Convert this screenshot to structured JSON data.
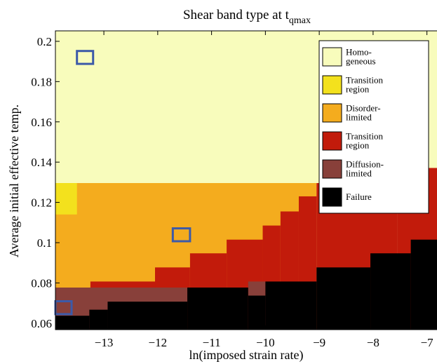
{
  "chart_data": {
    "type": "heatmap",
    "title": "Shear band type at t",
    "title_subscript": "qmax",
    "xlabel": "ln(imposed strain rate)",
    "ylabel": "Average initial effective temp.",
    "xlim": [
      -13.9,
      -6.8
    ],
    "ylim": [
      0.0568,
      0.2052
    ],
    "xticks": [
      -13,
      -12,
      -11,
      -10,
      -9,
      -8,
      -7
    ],
    "xtick_labels": [
      "−13",
      "−12",
      "−11",
      "−10",
      "−9",
      "−8",
      "−7"
    ],
    "yticks": [
      0.06,
      0.08,
      0.1,
      0.12,
      0.14,
      0.16,
      0.18,
      0.2
    ],
    "ytick_labels": [
      "0.06",
      "0.08",
      "0.1",
      "0.12",
      "0.14",
      "0.16",
      "0.18",
      "0.2"
    ],
    "legend_position": "top-right",
    "categories": [
      {
        "key": "homogeneous",
        "label": [
          "Homo-",
          "geneous"
        ],
        "color": "#f8fcbc"
      },
      {
        "key": "transition1",
        "label": [
          "Transition",
          "region"
        ],
        "color": "#f3e11d"
      },
      {
        "key": "disorder",
        "label": [
          "Disorder-",
          "limited"
        ],
        "color": "#f4ac1e"
      },
      {
        "key": "transition2",
        "label": [
          "Transition",
          "region"
        ],
        "color": "#c21b0b"
      },
      {
        "key": "diffusion",
        "label": [
          "Diffusion-",
          "limited"
        ],
        "color": "#88403a"
      },
      {
        "key": "failure",
        "label": [
          "Failure"
        ],
        "color": "#000000"
      }
    ],
    "regions": [
      {
        "category": "homogeneous",
        "x0": -13.9,
        "x1": -6.8,
        "y0": 0.0568,
        "y1": 0.2052
      },
      {
        "category": "disorder",
        "x0": -13.9,
        "x1": -9.05,
        "y0": 0.0568,
        "y1": 0.1296
      },
      {
        "category": "transition1",
        "x0": -13.9,
        "x1": -13.5,
        "y0": 0.114,
        "y1": 0.1296
      },
      {
        "category": "transition2",
        "x0": -9.05,
        "x1": -7.55,
        "y0": 0.0568,
        "y1": 0.1296
      },
      {
        "category": "transition2",
        "x0": -7.55,
        "x1": -6.8,
        "y0": 0.0568,
        "y1": 0.1371
      },
      {
        "category": "transition2",
        "x0": -9.38,
        "x1": -9.05,
        "y0": 0.0568,
        "y1": 0.123
      },
      {
        "category": "transition2",
        "x0": -9.72,
        "x1": -9.38,
        "y0": 0.0568,
        "y1": 0.1155
      },
      {
        "category": "transition2",
        "x0": -10.05,
        "x1": -9.72,
        "y0": 0.0568,
        "y1": 0.1085
      },
      {
        "category": "transition2",
        "x0": -10.72,
        "x1": -10.05,
        "y0": 0.0568,
        "y1": 0.1015
      },
      {
        "category": "transition2",
        "x0": -11.4,
        "x1": -10.72,
        "y0": 0.0568,
        "y1": 0.0947
      },
      {
        "category": "transition2",
        "x0": -12.05,
        "x1": -11.4,
        "y0": 0.0568,
        "y1": 0.0877
      },
      {
        "category": "transition2",
        "x0": -13.25,
        "x1": -12.05,
        "y0": 0.0568,
        "y1": 0.0807
      },
      {
        "category": "transition2",
        "x0": -13.9,
        "x1": -13.25,
        "y0": 0.0568,
        "y1": 0.0777
      },
      {
        "category": "diffusion",
        "x0": -13.9,
        "x1": -11.45,
        "y0": 0.0568,
        "y1": 0.0777
      },
      {
        "category": "diffusion",
        "x0": -10.32,
        "x1": -10.0,
        "y0": 0.0568,
        "y1": 0.0807
      },
      {
        "category": "failure",
        "x0": -12.93,
        "x1": -11.45,
        "y0": 0.0568,
        "y1": 0.0707
      },
      {
        "category": "failure",
        "x0": -13.27,
        "x1": -12.93,
        "y0": 0.0568,
        "y1": 0.0667
      },
      {
        "category": "failure",
        "x0": -13.9,
        "x1": -13.27,
        "y0": 0.0568,
        "y1": 0.0637
      },
      {
        "category": "failure",
        "x0": -11.45,
        "x1": -10.32,
        "y0": 0.0568,
        "y1": 0.0777
      },
      {
        "category": "failure",
        "x0": -10.32,
        "x1": -10.0,
        "y0": 0.0568,
        "y1": 0.0737
      },
      {
        "category": "failure",
        "x0": -10.0,
        "x1": -9.05,
        "y0": 0.0568,
        "y1": 0.0807
      },
      {
        "category": "failure",
        "x0": -9.05,
        "x1": -8.05,
        "y0": 0.0568,
        "y1": 0.0877
      },
      {
        "category": "failure",
        "x0": -8.05,
        "x1": -7.3,
        "y0": 0.0568,
        "y1": 0.0947
      },
      {
        "category": "failure",
        "x0": -7.3,
        "x1": -6.8,
        "y0": 0.0568,
        "y1": 0.1015
      }
    ],
    "highlight_boxes": [
      {
        "x0": -13.5,
        "x1": -13.2,
        "y0": 0.1888,
        "y1": 0.1952,
        "color": "#3c5aa8"
      },
      {
        "x0": -11.72,
        "x1": -11.4,
        "y0": 0.1007,
        "y1": 0.1071,
        "color": "#3c5aa8"
      },
      {
        "x0": -13.9,
        "x1": -13.6,
        "y0": 0.0645,
        "y1": 0.0709,
        "color": "#3c5aa8"
      }
    ]
  }
}
